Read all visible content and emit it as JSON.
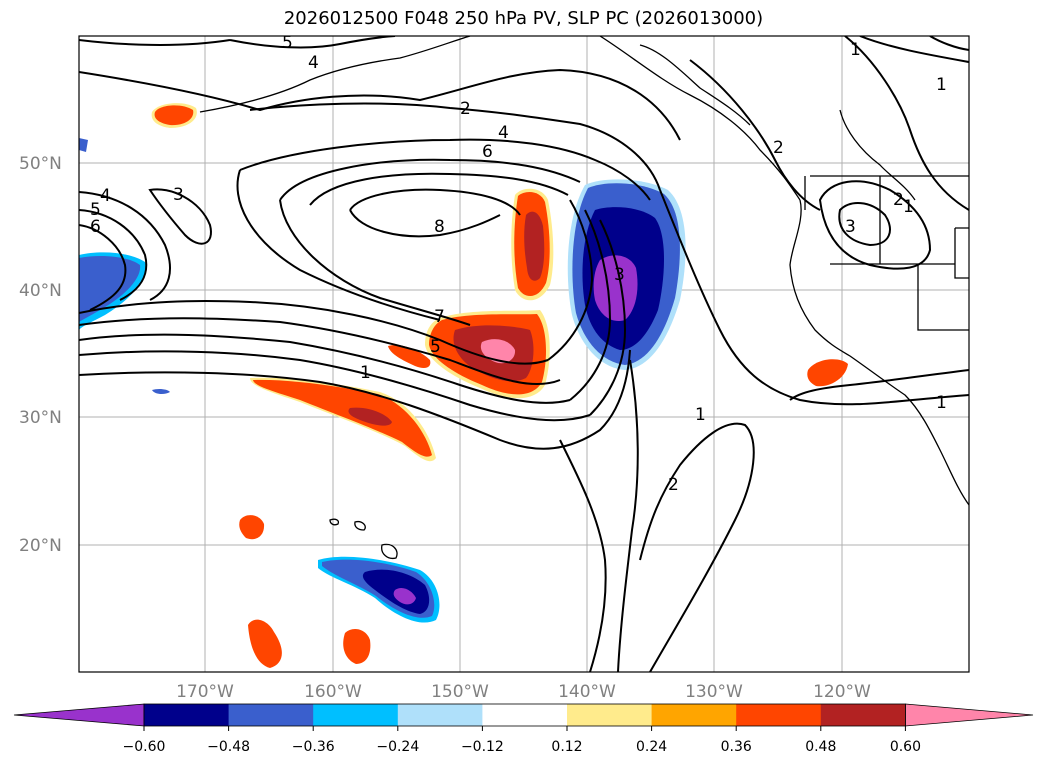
{
  "title": "2026012500 F048 250 hPa PV, SLP PC (2026013000)",
  "lat_labels": [
    "50°N",
    "40°N",
    "30°N",
    "20°N"
  ],
  "lon_labels": [
    "170°W",
    "160°W",
    "150°W",
    "140°W",
    "130°W",
    "120°W"
  ],
  "colorbar": {
    "colors": [
      "#9932cc",
      "#00008b",
      "#3a5fcd",
      "#00bfff",
      "#afe0fa",
      "#ffffff",
      "#ffeb8c",
      "#ffa500",
      "#ff4500",
      "#b22222",
      "#ff85aa"
    ],
    "ticks": [
      "−0.60",
      "−0.48",
      "−0.36",
      "−0.24",
      "−0.12",
      "0.12",
      "0.24",
      "0.36",
      "0.48",
      "0.60"
    ]
  },
  "contour_labels": [
    "5",
    "4",
    "2",
    "4",
    "6",
    "8",
    "7",
    "5",
    "1",
    "3",
    "4",
    "5",
    "6",
    "1",
    "2",
    "1",
    "1",
    "2",
    "3",
    "2",
    "1",
    "1",
    "3"
  ]
}
